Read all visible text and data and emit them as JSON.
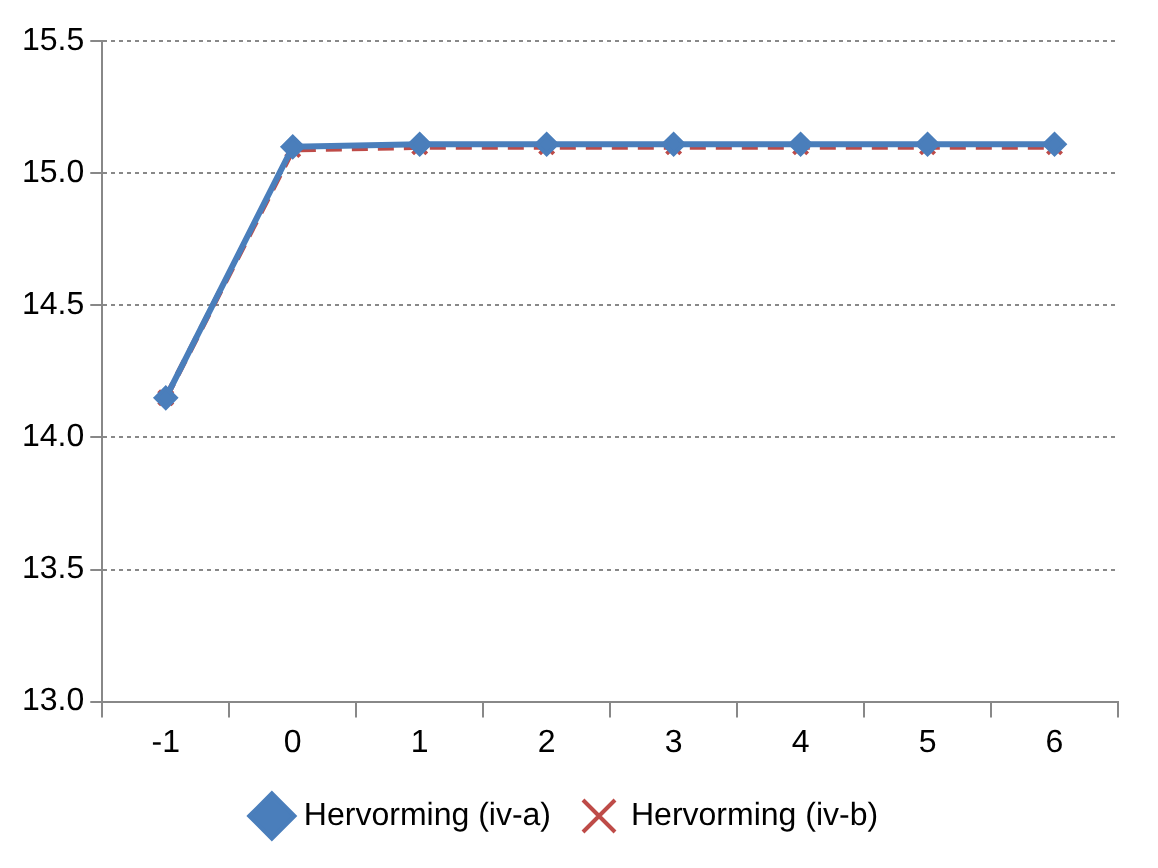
{
  "chart_data": {
    "type": "line",
    "categories": [
      "-1",
      "0",
      "1",
      "2",
      "3",
      "4",
      "5",
      "6"
    ],
    "series": [
      {
        "name": "Hervorming (iv-a)",
        "color": "#4a7ebb",
        "marker": "diamond",
        "line_style": "solid",
        "values": [
          14.15,
          15.1,
          15.11,
          15.11,
          15.11,
          15.11,
          15.11,
          15.11
        ]
      },
      {
        "name": "Hervorming (iv-b)",
        "color": "#be4b48",
        "marker": "cross",
        "line_style": "dashed",
        "values": [
          14.15,
          15.09,
          15.1,
          15.1,
          15.1,
          15.1,
          15.1,
          15.1
        ]
      }
    ],
    "ylim": [
      13,
      15.5
    ],
    "yticks": [
      {
        "value": 13,
        "label": "13.0"
      },
      13.5,
      {
        "value": 14,
        "label": "14.0"
      },
      14.5,
      {
        "value": 15,
        "label": "15.0"
      },
      15.5
    ],
    "grid": "y",
    "legend": "bottom"
  }
}
